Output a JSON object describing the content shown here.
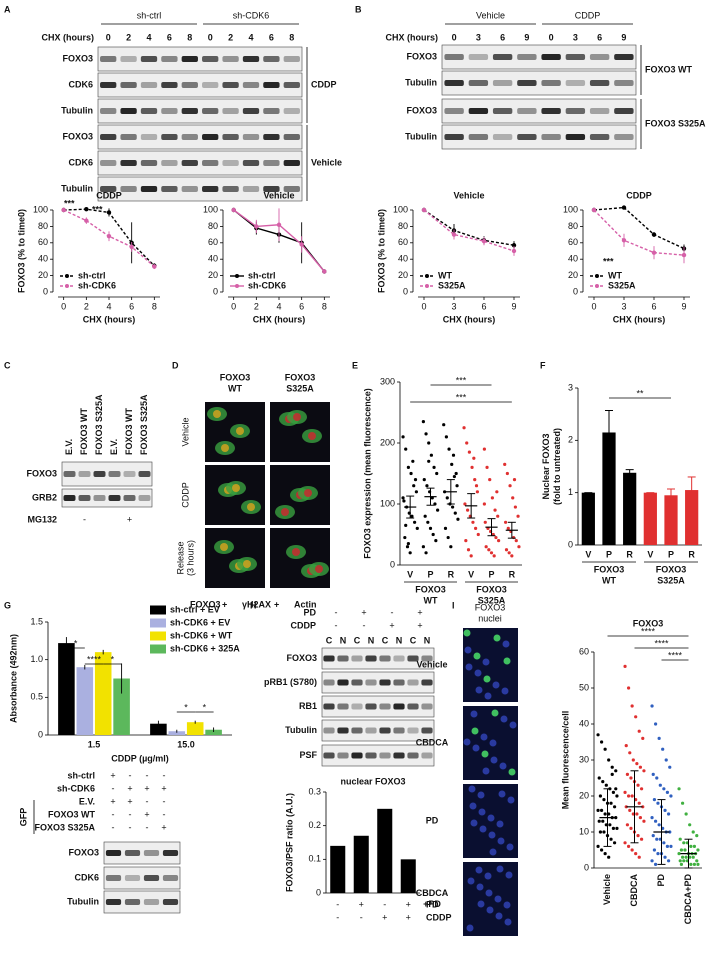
{
  "panels": {
    "letters": [
      "A",
      "B",
      "C",
      "D",
      "E",
      "F",
      "G",
      "H",
      "I"
    ],
    "A": {
      "lane_title": "CHX (hours)",
      "groups": [
        "sh-ctrl",
        "sh-CDK6"
      ],
      "lanes": [
        "0",
        "2",
        "4",
        "6",
        "8",
        "0",
        "2",
        "4",
        "6",
        "8"
      ],
      "rows": [
        "FOXO3",
        "CDK6",
        "Tubulin",
        "FOXO3",
        "CDK6",
        "Tubulin"
      ],
      "sides": [
        "CDDP",
        "Vehicle"
      ]
    },
    "B": {
      "lane_title": "CHX (hours)",
      "groups": [
        "Vehicle",
        "CDDP"
      ],
      "lanes": [
        "0",
        "3",
        "6",
        "9",
        "0",
        "3",
        "6",
        "9"
      ],
      "rows": [
        "FOXO3",
        "Tubulin",
        "FOXO3",
        "Tubulin"
      ],
      "sides": [
        "FOXO3 WT",
        "FOXO3 S325A"
      ]
    },
    "C": {
      "lanes": [
        "E.V.",
        "FOXO3 WT",
        "FOXO3 S325A",
        "E.V.",
        "FOXO3 WT",
        "FOXO3 S325A"
      ],
      "rows": [
        "FOXO3",
        "GRB2"
      ],
      "treatment": "MG132",
      "treatment_values": [
        "-",
        "+"
      ]
    },
    "D": {
      "columns": [
        [
          "FOXO3",
          "WT"
        ],
        [
          "FOXO3",
          "S325A"
        ]
      ],
      "rows": [
        [
          "Vehicle"
        ],
        [
          "CDDP"
        ],
        [
          "Release",
          "(3 hours)"
        ]
      ],
      "stain": [
        "FOXO3",
        " + ",
        "γH2AX",
        " + ",
        "Actin"
      ]
    },
    "G": {
      "conditions": [
        {
          "name": "sh-ctrl",
          "values": [
            "+",
            "-",
            "-",
            "-"
          ]
        },
        {
          "name": "sh-CDK6",
          "values": [
            "-",
            "+",
            "+",
            "+"
          ]
        },
        {
          "name": "E.V.",
          "values": [
            "+",
            "+",
            "-",
            "-"
          ]
        },
        {
          "name": "FOXO3 WT",
          "values": [
            "-",
            "-",
            "+",
            "-"
          ]
        },
        {
          "name": "FOXO3 S325A",
          "values": [
            "-",
            "-",
            "-",
            "+"
          ]
        }
      ],
      "side": "GFP",
      "rows": [
        "FOXO3",
        "CDK6",
        "Tubulin"
      ]
    },
    "H": {
      "conditions": [
        {
          "name": "PD",
          "values": [
            "-",
            "+",
            "-",
            "+"
          ]
        },
        {
          "name": "CDDP",
          "values": [
            "-",
            "-",
            "+",
            "+"
          ]
        }
      ],
      "lanes": [
        "C",
        "N",
        "C",
        "N",
        "C",
        "N",
        "C",
        "N"
      ],
      "rows": [
        "FOXO3",
        "pRB1 (S780)",
        "RB1",
        "Tubulin",
        "PSF"
      ]
    },
    "I": {
      "stains": [
        "FOXO3",
        "nuclei"
      ],
      "rows": [
        [
          "Vehicle"
        ],
        [
          "CBDCA"
        ],
        [
          "PD"
        ],
        [
          "CBDCA",
          "+PD"
        ]
      ]
    }
  },
  "chart_data": [
    {
      "type": "line",
      "title": "CDDP",
      "xlabel": "CHX (hours)",
      "ylabel": "FOXO3 (% to time0)",
      "x": [
        0,
        2,
        4,
        6,
        8
      ],
      "xlim": [
        -0.5,
        8.5
      ],
      "xticks": [
        0,
        2,
        4,
        6,
        8
      ],
      "ylim": [
        0,
        100
      ],
      "yticks": [
        0,
        20,
        40,
        60,
        80,
        100
      ],
      "legend": "lower left",
      "series": [
        {
          "name": "sh-ctrl",
          "color": "#000000",
          "dashed": true,
          "values": [
            100,
            101,
            97,
            60,
            32
          ],
          "errors": [
            0,
            1,
            5,
            25,
            3
          ]
        },
        {
          "name": "sh-CDK6",
          "color": "#d660a8",
          "dashed": true,
          "values": [
            100,
            87,
            68,
            55,
            31
          ],
          "errors": [
            0,
            4,
            6,
            6,
            3
          ]
        }
      ],
      "annotations": [
        "***",
        "***"
      ]
    },
    {
      "type": "line",
      "title": "Vehicle",
      "xlabel": "CHX (hours)",
      "x": [
        0,
        2,
        4,
        6,
        8
      ],
      "xlim": [
        -0.5,
        8.5
      ],
      "xticks": [
        0,
        2,
        4,
        6,
        8
      ],
      "ylim": [
        0,
        100
      ],
      "yticks": [
        0,
        20,
        40,
        60,
        80,
        100
      ],
      "legend": "lower left",
      "series": [
        {
          "name": "sh-ctrl",
          "color": "#000000",
          "dashed": false,
          "values": [
            100,
            78,
            70,
            60,
            25
          ],
          "errors": [
            0,
            8,
            10,
            25,
            2
          ]
        },
        {
          "name": "sh-CDK6",
          "color": "#d660a8",
          "dashed": false,
          "values": [
            100,
            80,
            82,
            58,
            25
          ],
          "errors": [
            0,
            8,
            20,
            10,
            2
          ]
        }
      ]
    },
    {
      "type": "line",
      "title": "Vehicle",
      "xlabel": "CHX (hours)",
      "ylabel": "FOXO3 (% to time0)",
      "x": [
        0,
        3,
        6,
        9
      ],
      "xlim": [
        -0.6,
        9.6
      ],
      "xticks": [
        0,
        3,
        6,
        9
      ],
      "ylim": [
        0,
        100
      ],
      "yticks": [
        0,
        20,
        40,
        60,
        80,
        100
      ],
      "legend": "lower left",
      "series": [
        {
          "name": "WT",
          "color": "#000000",
          "dashed": true,
          "values": [
            100,
            75,
            63,
            57
          ],
          "errors": [
            0,
            8,
            5,
            5
          ]
        },
        {
          "name": "S325A",
          "color": "#d660a8",
          "dashed": true,
          "values": [
            100,
            70,
            62,
            50
          ],
          "errors": [
            0,
            6,
            5,
            6
          ]
        }
      ]
    },
    {
      "type": "line",
      "title": "CDDP",
      "xlabel": "CHX (hours)",
      "x": [
        0,
        3,
        6,
        9
      ],
      "xlim": [
        -0.6,
        9.6
      ],
      "xticks": [
        0,
        3,
        6,
        9
      ],
      "ylim": [
        0,
        100
      ],
      "yticks": [
        0,
        20,
        40,
        60,
        80,
        100
      ],
      "legend": "lower left",
      "series": [
        {
          "name": "WT",
          "color": "#000000",
          "dashed": true,
          "values": [
            100,
            103,
            70,
            53
          ],
          "errors": [
            0,
            1,
            3,
            5
          ]
        },
        {
          "name": "S325A",
          "color": "#d660a8",
          "dashed": true,
          "values": [
            100,
            63,
            48,
            45
          ],
          "errors": [
            0,
            8,
            8,
            10
          ]
        }
      ],
      "annotations": [
        "***"
      ]
    },
    {
      "type": "dot",
      "ylabel": "FOXO3 expression (mean fluorescence)",
      "ylim": [
        0,
        300
      ],
      "yticks": [
        0,
        100,
        200,
        300
      ],
      "categories": [
        "V",
        "P",
        "R",
        "V",
        "P",
        "R"
      ],
      "groups": [
        [
          "FOXO3",
          "WT"
        ],
        [
          "FOXO3",
          "S325A"
        ]
      ],
      "colors": [
        "#000000",
        "#000000",
        "#000000",
        "#e03030",
        "#e03030",
        "#e03030"
      ],
      "points": [
        [
          210,
          190,
          160,
          150,
          130,
          120,
          105,
          95,
          85,
          80,
          70,
          60,
          45,
          30,
          20,
          170,
          140,
          110,
          65,
          35
        ],
        [
          235,
          215,
          200,
          180,
          160,
          150,
          140,
          130,
          120,
          110,
          100,
          90,
          80,
          70,
          60,
          50,
          40,
          30,
          20,
          170
        ],
        [
          230,
          210,
          190,
          165,
          145,
          130,
          120,
          110,
          100,
          95,
          85,
          75,
          60,
          45,
          30,
          180,
          150
        ],
        [
          225,
          200,
          185,
          160,
          140,
          120,
          100,
          90,
          80,
          70,
          60,
          50,
          40,
          25,
          15,
          175,
          130
        ],
        [
          190,
          160,
          140,
          110,
          90,
          80,
          70,
          60,
          55,
          50,
          45,
          40,
          30,
          25,
          20,
          15,
          120,
          100
        ],
        [
          165,
          150,
          130,
          110,
          95,
          80,
          70,
          60,
          55,
          45,
          40,
          30,
          25,
          20,
          15,
          140
        ]
      ],
      "means": [
        95,
        112,
        120,
        97,
        62,
        57
      ],
      "errors": [
        18,
        14,
        20,
        20,
        14,
        13
      ],
      "annotations": [
        "***",
        "***"
      ]
    },
    {
      "type": "bar",
      "ylabel": [
        "Nuclear FOXO3",
        "(fold to untreated)"
      ],
      "ylim": [
        0,
        3
      ],
      "yticks": [
        0,
        1,
        2,
        3
      ],
      "categories": [
        "V",
        "P",
        "R",
        "V",
        "P",
        "R"
      ],
      "groups": [
        [
          "FOXO3",
          "WT"
        ],
        [
          "FOXO3",
          "S325A"
        ]
      ],
      "values": [
        1,
        2.15,
        1.38,
        1,
        0.95,
        1.05
      ],
      "errors": [
        0,
        0.42,
        0.06,
        0,
        0.12,
        0.25
      ],
      "colors": [
        "#000000",
        "#000000",
        "#000000",
        "#e03030",
        "#e03030",
        "#e03030"
      ],
      "annotations": [
        "**"
      ]
    },
    {
      "type": "grouped_bar",
      "ylabel": "Absorbance (492nm)",
      "xlabel": "CDDP (µg/ml)",
      "categories": [
        "1.5",
        "15.0"
      ],
      "ylim": [
        0,
        1.5
      ],
      "yticks": [
        0,
        0.5,
        {
          "value": 1,
          "label": "1.0"
        },
        1.5
      ],
      "legend": "upper right",
      "series": [
        {
          "name": "sh-ctrl + EV",
          "color": "#000000",
          "values": [
            1.22,
            0.15
          ],
          "errors": [
            0.08,
            0.04
          ]
        },
        {
          "name": "sh-CDK6 + EV",
          "color": "#aab0e0",
          "values": [
            0.9,
            0.05
          ],
          "errors": [
            0.03,
            0.02
          ]
        },
        {
          "name": "sh-CDK6 + WT",
          "color": "#f2e200",
          "values": [
            1.1,
            0.17
          ],
          "errors": [
            0.03,
            0.02
          ]
        },
        {
          "name": "sh-CDK6 + 325A",
          "color": "#5cb85c",
          "values": [
            0.75,
            0.07
          ],
          "errors": [
            0.2,
            0.03
          ]
        }
      ],
      "annotations": [
        "*",
        "****",
        "*",
        "*",
        "*"
      ]
    },
    {
      "type": "bar",
      "title": "nuclear FOXO3",
      "ylabel": "FOXO3/PSF ratio (A.U.)",
      "ylim": [
        0,
        0.3
      ],
      "yticks": [
        0,
        0.1,
        0.2,
        0.3
      ],
      "values": [
        0.14,
        0.17,
        0.25,
        0.1
      ],
      "color": "#000000",
      "conditions": [
        {
          "name": "PD",
          "values": [
            "-",
            "+",
            "-",
            "+"
          ]
        },
        {
          "name": "CDDP",
          "values": [
            "-",
            "-",
            "+",
            "+"
          ]
        }
      ]
    },
    {
      "type": "dot",
      "title": "FOXO3",
      "ylabel": "Mean fluorescence/cell",
      "ylim": [
        0,
        60
      ],
      "yticks": [
        0,
        10,
        20,
        30,
        40,
        50,
        60
      ],
      "categories": [
        "Vehicle",
        "CBDCA",
        "PD",
        "CBDCA+PD"
      ],
      "colors": [
        "#000000",
        "#e03030",
        "#3060c0",
        "#40b040"
      ],
      "points": [
        [
          37,
          35,
          33,
          30,
          28,
          27,
          25,
          24,
          23,
          22,
          21,
          20,
          20,
          19,
          18,
          18,
          17,
          16,
          16,
          15,
          15,
          14,
          14,
          13,
          13,
          12,
          12,
          11,
          11,
          10,
          10,
          9,
          8,
          7,
          6,
          5,
          4,
          3,
          26,
          22
        ],
        [
          56,
          50,
          45,
          42,
          38,
          36,
          34,
          32,
          30,
          29,
          28,
          27,
          26,
          25,
          24,
          23,
          22,
          21,
          20,
          20,
          19,
          18,
          17,
          17,
          16,
          15,
          15,
          14,
          13,
          12,
          11,
          10,
          9,
          8,
          7,
          6,
          5,
          4,
          3
        ],
        [
          45,
          40,
          36,
          33,
          30,
          28,
          26,
          25,
          23,
          22,
          21,
          20,
          19,
          18,
          17,
          16,
          15,
          14,
          13,
          12,
          11,
          10,
          10,
          9,
          8,
          8,
          7,
          6,
          6,
          5,
          4,
          4,
          3,
          2,
          2,
          1
        ],
        [
          22,
          18,
          15,
          12,
          10,
          9,
          8,
          7,
          7,
          6,
          6,
          5,
          5,
          5,
          4,
          4,
          4,
          4,
          3,
          3,
          3,
          3,
          2,
          2,
          2,
          2,
          1,
          1,
          1,
          1
        ]
      ],
      "means": [
        14,
        17,
        10,
        4
      ],
      "errors": [
        8,
        10,
        9,
        4
      ],
      "annotations": [
        "****",
        "****",
        "****"
      ]
    }
  ]
}
